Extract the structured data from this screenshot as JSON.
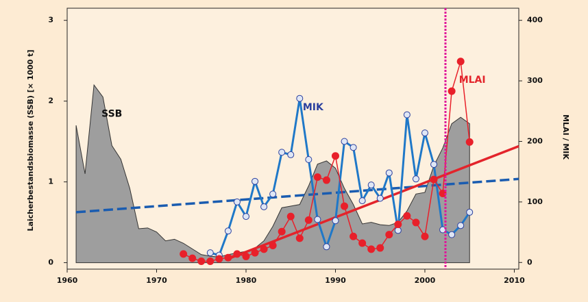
{
  "chart_data": {
    "type": "line",
    "y_label": "Laicherbestandsbiomasse (SSB)  [× 1000 t]",
    "y2_label": "MLAI / MIK",
    "xlim": [
      1960,
      2010.5
    ],
    "xticks": [
      1960,
      1970,
      1980,
      1990,
      2000,
      2010
    ],
    "ylim": [
      -0.08,
      3.15
    ],
    "yticks": [
      0,
      1,
      2,
      3
    ],
    "y2lim": [
      -11,
      420
    ],
    "y2ticks": [
      0,
      100,
      200,
      300,
      400
    ],
    "annotations": [
      {
        "text": "SSB",
        "x": 1965,
        "y": 1.84,
        "color": "#111111"
      },
      {
        "text": "MIK",
        "x": 1987.5,
        "y": 1.92,
        "color": "#2a3f9e"
      },
      {
        "text": "MLAI",
        "x": 2005.3,
        "y": 2.26,
        "color": "#e3242b"
      }
    ],
    "vline": {
      "x": 2002.3,
      "color": "#e0169a"
    },
    "series": [
      {
        "name": "SSB",
        "style": "area",
        "color": "#9e9e9e",
        "x": [
          1961,
          1962,
          1963,
          1964,
          1965,
          1966,
          1967,
          1968,
          1969,
          1970,
          1971,
          1972,
          1973,
          1974,
          1975,
          1976,
          1977,
          1978,
          1979,
          1980,
          1981,
          1982,
          1983,
          1984,
          1985,
          1986,
          1987,
          1988,
          1989,
          1990,
          1991,
          1992,
          1993,
          1994,
          1995,
          1996,
          1997,
          1998,
          1999,
          2000,
          2001,
          2002,
          2003,
          2004,
          2005
        ],
        "values": [
          1.7,
          1.1,
          2.2,
          2.05,
          1.45,
          1.28,
          0.92,
          0.42,
          0.43,
          0.38,
          0.27,
          0.29,
          0.24,
          0.17,
          0.1,
          0.08,
          0.07,
          0.1,
          0.12,
          0.14,
          0.18,
          0.27,
          0.45,
          0.68,
          0.7,
          0.72,
          0.95,
          1.22,
          1.26,
          1.17,
          0.92,
          0.72,
          0.48,
          0.5,
          0.47,
          0.46,
          0.5,
          0.64,
          0.85,
          0.87,
          1.2,
          1.42,
          1.72,
          1.8,
          1.72
        ]
      },
      {
        "name": "MIK",
        "style": "open",
        "axis": "y2",
        "color": "#1f78c8",
        "x": [
          1976,
          1977,
          1978,
          1979,
          1980,
          1981,
          1982,
          1983,
          1984,
          1985,
          1986,
          1987,
          1988,
          1989,
          1990,
          1991,
          1992,
          1993,
          1994,
          1995,
          1996,
          1997,
          1998,
          1999,
          2000,
          2001,
          2002,
          2003,
          2004,
          2005
        ],
        "values": [
          16,
          12,
          52,
          100,
          76,
          134,
          92,
          113,
          182,
          178,
          271,
          170,
          71,
          26,
          69,
          200,
          190,
          102,
          128,
          106,
          148,
          53,
          244,
          138,
          214,
          162,
          54,
          46,
          61,
          83
        ]
      },
      {
        "name": "MLAI",
        "style": "filled",
        "axis": "y2",
        "color": "#e8202a",
        "x": [
          1973,
          1974,
          1975,
          1976,
          1977,
          1978,
          1979,
          1980,
          1981,
          1982,
          1983,
          1984,
          1985,
          1986,
          1987,
          1988,
          1989,
          1990,
          1991,
          1992,
          1993,
          1994,
          1995,
          1996,
          1997,
          1998,
          1999,
          2000,
          2001,
          2002,
          2003,
          2004,
          2005
        ],
        "values": [
          14,
          7,
          2,
          2,
          6,
          8,
          14,
          10,
          16,
          22,
          28,
          51,
          76,
          40,
          70,
          141,
          136,
          176,
          93,
          43,
          32,
          22,
          24,
          46,
          63,
          77,
          66,
          43,
          137,
          114,
          283,
          332,
          199
        ]
      }
    ],
    "trend_lines": [
      {
        "x": [
          1961,
          2010.5
        ],
        "values": [
          83,
          138
        ],
        "axis": "y2",
        "color": "#1a5cb0",
        "dashed": true
      },
      {
        "x": [
          1978,
          2010.5
        ],
        "values": [
          6,
          192
        ],
        "axis": "y2",
        "color": "#e3242b",
        "dashed": false
      }
    ]
  }
}
